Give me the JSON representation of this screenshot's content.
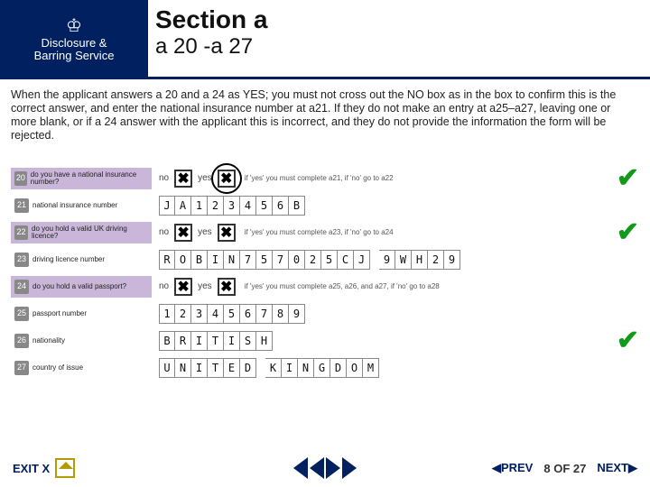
{
  "header": {
    "logo_top": "Disclosure &",
    "logo_bottom": "Barring Service",
    "title": "Section a",
    "subtitle": "a 20 -a 27"
  },
  "body_text": "When the applicant answers a 20 and a 24 as YES; you must not cross out the NO box as in the box to confirm this is the correct answer, and enter the national insurance number at a21. If they do not make an entry at a25–a27, leaving one or more blank, or if a 24 answer with the applicant this is incorrect, and they do not provide the information the form will be rejected.",
  "rows": [
    {
      "num": "20",
      "label": "do you have a national insurance number?",
      "purple": true,
      "type": "yn",
      "no_checked": true,
      "yes_checked": true,
      "yes_circled": true,
      "hint": "if 'yes' you must complete a21, if 'no' go to a22",
      "tick": true
    },
    {
      "num": "21",
      "label": "national insurance number",
      "purple": false,
      "type": "boxes",
      "cells": [
        "J",
        "A",
        "1",
        "2",
        "3",
        "4",
        "5",
        "6",
        "B"
      ],
      "tick": false
    },
    {
      "num": "22",
      "label": "do you hold a valid UK driving licence?",
      "purple": true,
      "type": "yn",
      "no_checked": true,
      "yes_checked": true,
      "yes_circled": false,
      "hint": "if 'yes' you must complete a23, if 'no' go to a24",
      "tick": true
    },
    {
      "num": "23",
      "label": "driving licence number",
      "purple": false,
      "type": "boxes",
      "cells": [
        "R",
        "O",
        "B",
        "I",
        "N",
        "7",
        "5",
        "7",
        "0",
        "2",
        "5",
        "C",
        "J",
        " ",
        "9",
        "W",
        "H",
        "2",
        "9"
      ],
      "tick": false
    },
    {
      "num": "24",
      "label": "do you hold a valid passport?",
      "purple": true,
      "type": "yn",
      "no_checked": true,
      "yes_checked": true,
      "yes_circled": false,
      "hint": "if 'yes' you must complete a25, a26, and a27, if 'no' go to a28",
      "tick": false
    },
    {
      "num": "25",
      "label": "passport number",
      "purple": false,
      "type": "boxes",
      "cells": [
        "1",
        "2",
        "3",
        "4",
        "5",
        "6",
        "7",
        "8",
        "9"
      ],
      "tick": false
    },
    {
      "num": "26",
      "label": "nationality",
      "purple": false,
      "type": "boxes",
      "cells": [
        "B",
        "R",
        "I",
        "T",
        "I",
        "S",
        "H"
      ],
      "tick": true
    },
    {
      "num": "27",
      "label": "country of issue",
      "purple": false,
      "type": "boxes",
      "cells": [
        "U",
        "N",
        "I",
        "T",
        "E",
        "D",
        " ",
        "K",
        "I",
        "N",
        "G",
        "D",
        "O",
        "M"
      ],
      "tick": false
    }
  ],
  "footer": {
    "exit": "EXIT X",
    "prev": "PREV",
    "page": "8 OF 27",
    "next": "NEXT"
  },
  "colors": {
    "brand": "#002060",
    "purple": "#c9b6d9",
    "tick": "#139a1a"
  }
}
